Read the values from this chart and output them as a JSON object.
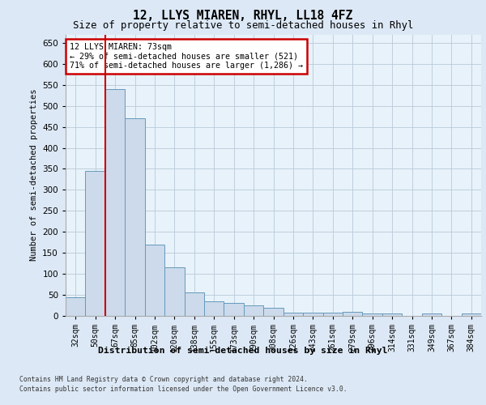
{
  "title1": "12, LLYS MIAREN, RHYL, LL18 4FZ",
  "title2": "Size of property relative to semi-detached houses in Rhyl",
  "xlabel": "Distribution of semi-detached houses by size in Rhyl",
  "ylabel": "Number of semi-detached properties",
  "categories": [
    "32sqm",
    "50sqm",
    "67sqm",
    "85sqm",
    "102sqm",
    "120sqm",
    "138sqm",
    "155sqm",
    "173sqm",
    "190sqm",
    "208sqm",
    "226sqm",
    "243sqm",
    "261sqm",
    "279sqm",
    "296sqm",
    "314sqm",
    "331sqm",
    "349sqm",
    "367sqm",
    "384sqm"
  ],
  "values": [
    45,
    345,
    540,
    470,
    170,
    115,
    55,
    35,
    30,
    25,
    20,
    8,
    8,
    8,
    10,
    5,
    5,
    0,
    5,
    0,
    5
  ],
  "bar_color": "#ccdaeb",
  "bar_edge_color": "#6699bb",
  "marker_index": 2,
  "annotation_text": "12 LLYS MIAREN: 73sqm\n← 29% of semi-detached houses are smaller (521)\n71% of semi-detached houses are larger (1,286) →",
  "annotation_box_color": "#ffffff",
  "annotation_box_edge": "#cc0000",
  "marker_line_color": "#cc0000",
  "ylim": [
    0,
    670
  ],
  "yticks": [
    0,
    50,
    100,
    150,
    200,
    250,
    300,
    350,
    400,
    450,
    500,
    550,
    600,
    650
  ],
  "footer1": "Contains HM Land Registry data © Crown copyright and database right 2024.",
  "footer2": "Contains public sector information licensed under the Open Government Licence v3.0.",
  "bg_color": "#dce8f5",
  "plot_bg_color": "#e8f2fa"
}
